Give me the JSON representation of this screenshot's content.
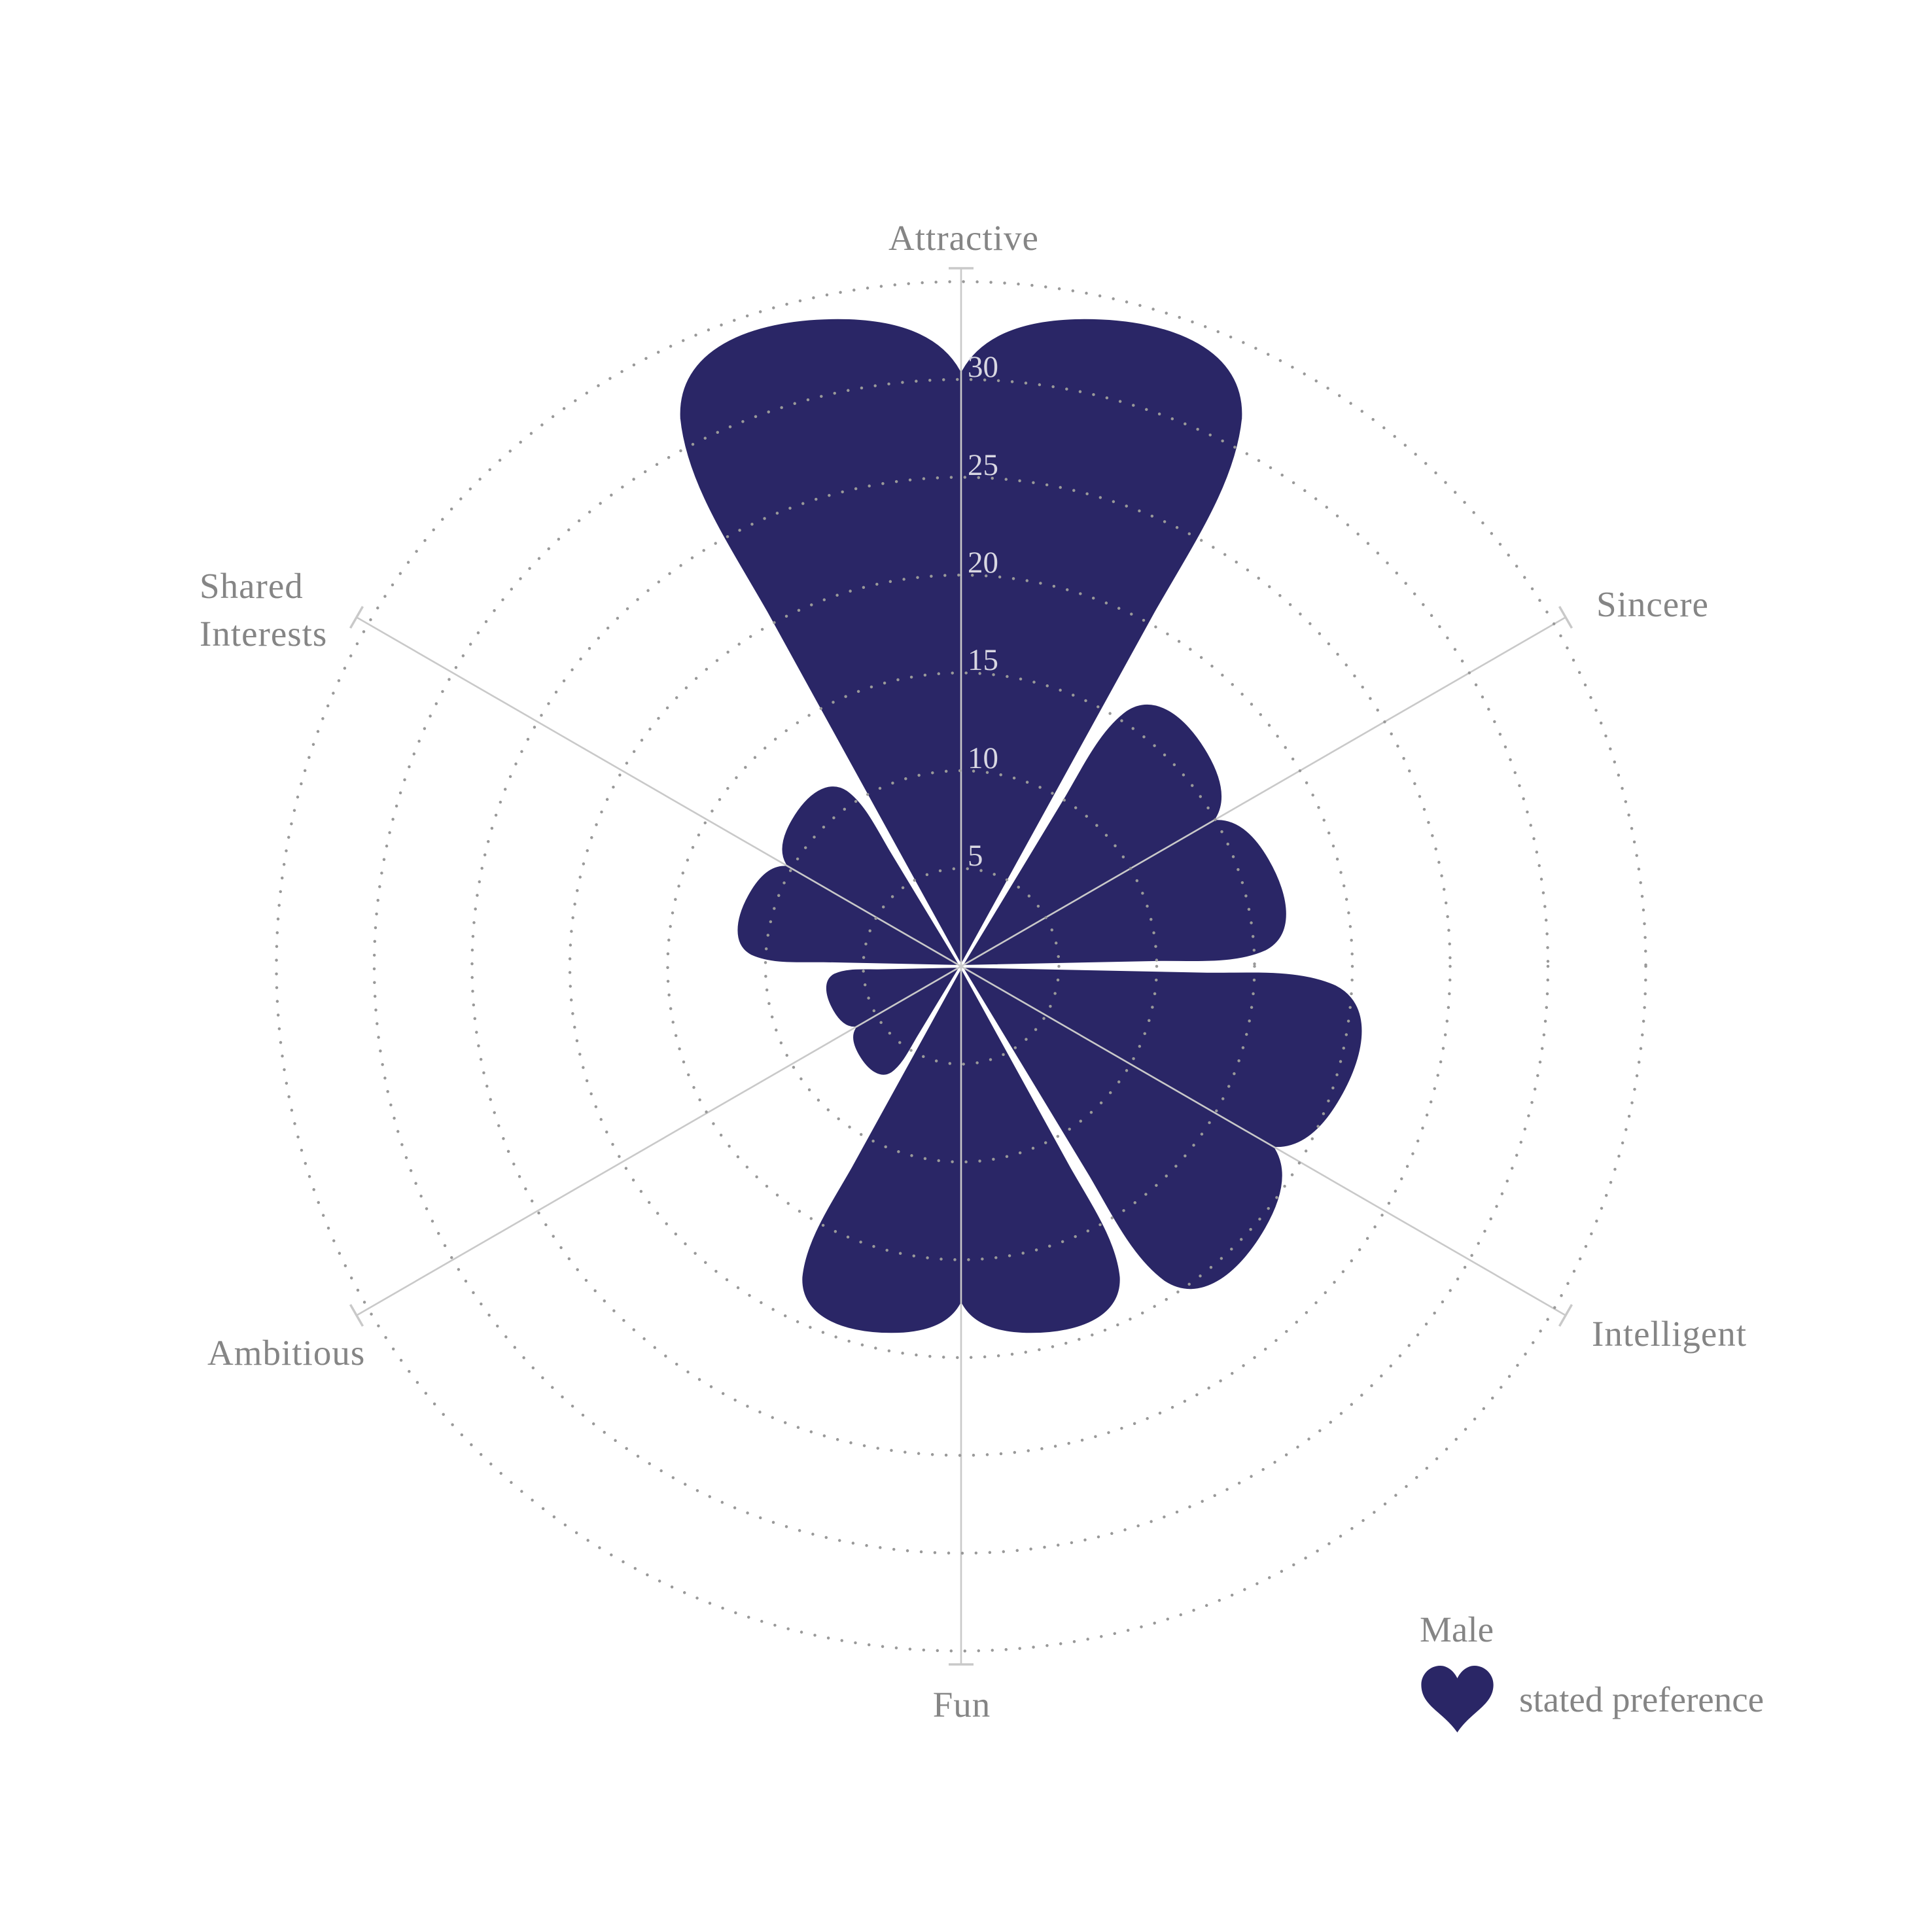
{
  "chart_data": {
    "type": "polar_rose_hearts",
    "description": "Six heart-shaped petals radiating from center, one per attribute, petal length = stated preference points",
    "categories": [
      "Attractive",
      "Sincere",
      "Intelligent",
      "Fun",
      "Ambitious",
      "Shared Interests"
    ],
    "values": [
      30.5,
      15.1,
      18.6,
      17.3,
      6.3,
      10.4
    ],
    "series": [
      {
        "name": "Male stated preference",
        "values": [
          30.5,
          15.1,
          18.6,
          17.3,
          6.3,
          10.4
        ]
      }
    ],
    "axis_labels_display": [
      "Attractive",
      "Sincere",
      "Intelligent",
      "Fun",
      "Ambitious",
      "Shared\nInterests"
    ],
    "angles_deg_clockwise_from_top": [
      0,
      60,
      120,
      180,
      240,
      300
    ],
    "r_ticks": [
      5,
      10,
      15,
      20,
      25,
      30
    ],
    "r_rings": [
      5,
      10,
      15,
      20,
      25,
      30,
      35
    ],
    "r_max": 35,
    "grid": "dotted concentric circles",
    "legend": {
      "title": "Male",
      "swatch": "heart-icon",
      "label": "stated preference",
      "position": "bottom-right"
    },
    "colors": {
      "heart_fill": "#2a2666",
      "petal_gap_stroke": "#ffffff",
      "axis_line": "#c9c9c9",
      "grid_dot": "#999999",
      "tick_label": "#d8d7e2",
      "category_label": "#858585"
    }
  }
}
